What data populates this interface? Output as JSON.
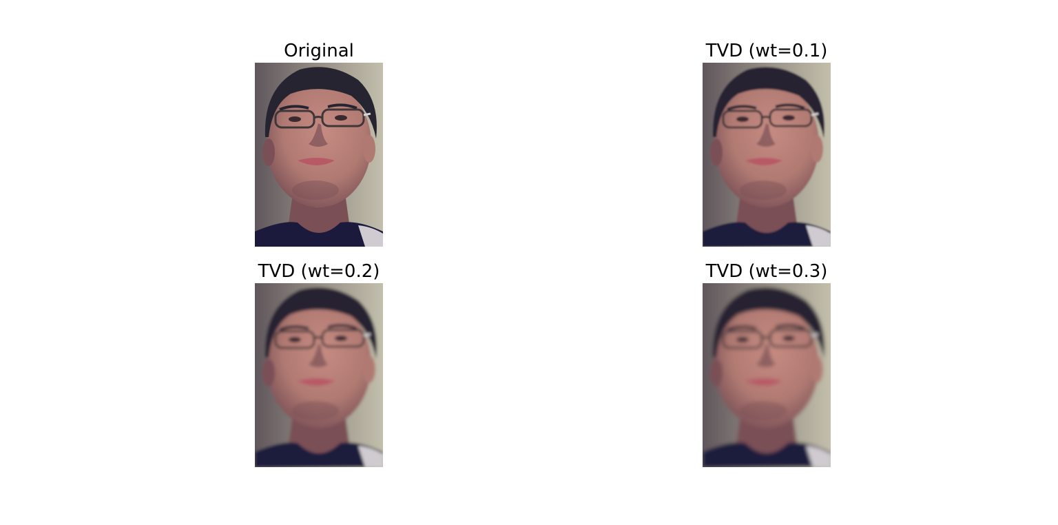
{
  "figure": {
    "panels": [
      {
        "title": "Original",
        "blur": 0.0
      },
      {
        "title": "TVD (wt=0.1)",
        "blur": 1.4
      },
      {
        "title": "TVD (wt=0.2)",
        "blur": 2.2
      },
      {
        "title": "TVD (wt=0.3)",
        "blur": 2.8
      }
    ]
  },
  "colors": {
    "background_left": "#5a5058",
    "background_right": "#c8c4b0",
    "skin": "#b07a72",
    "skin_shadow": "#7a5056",
    "hair": "#262431",
    "lips": "#b85a66",
    "shirt": "#1c1a3c",
    "collar": "#cfcbd0",
    "frame": "#3e3638"
  }
}
